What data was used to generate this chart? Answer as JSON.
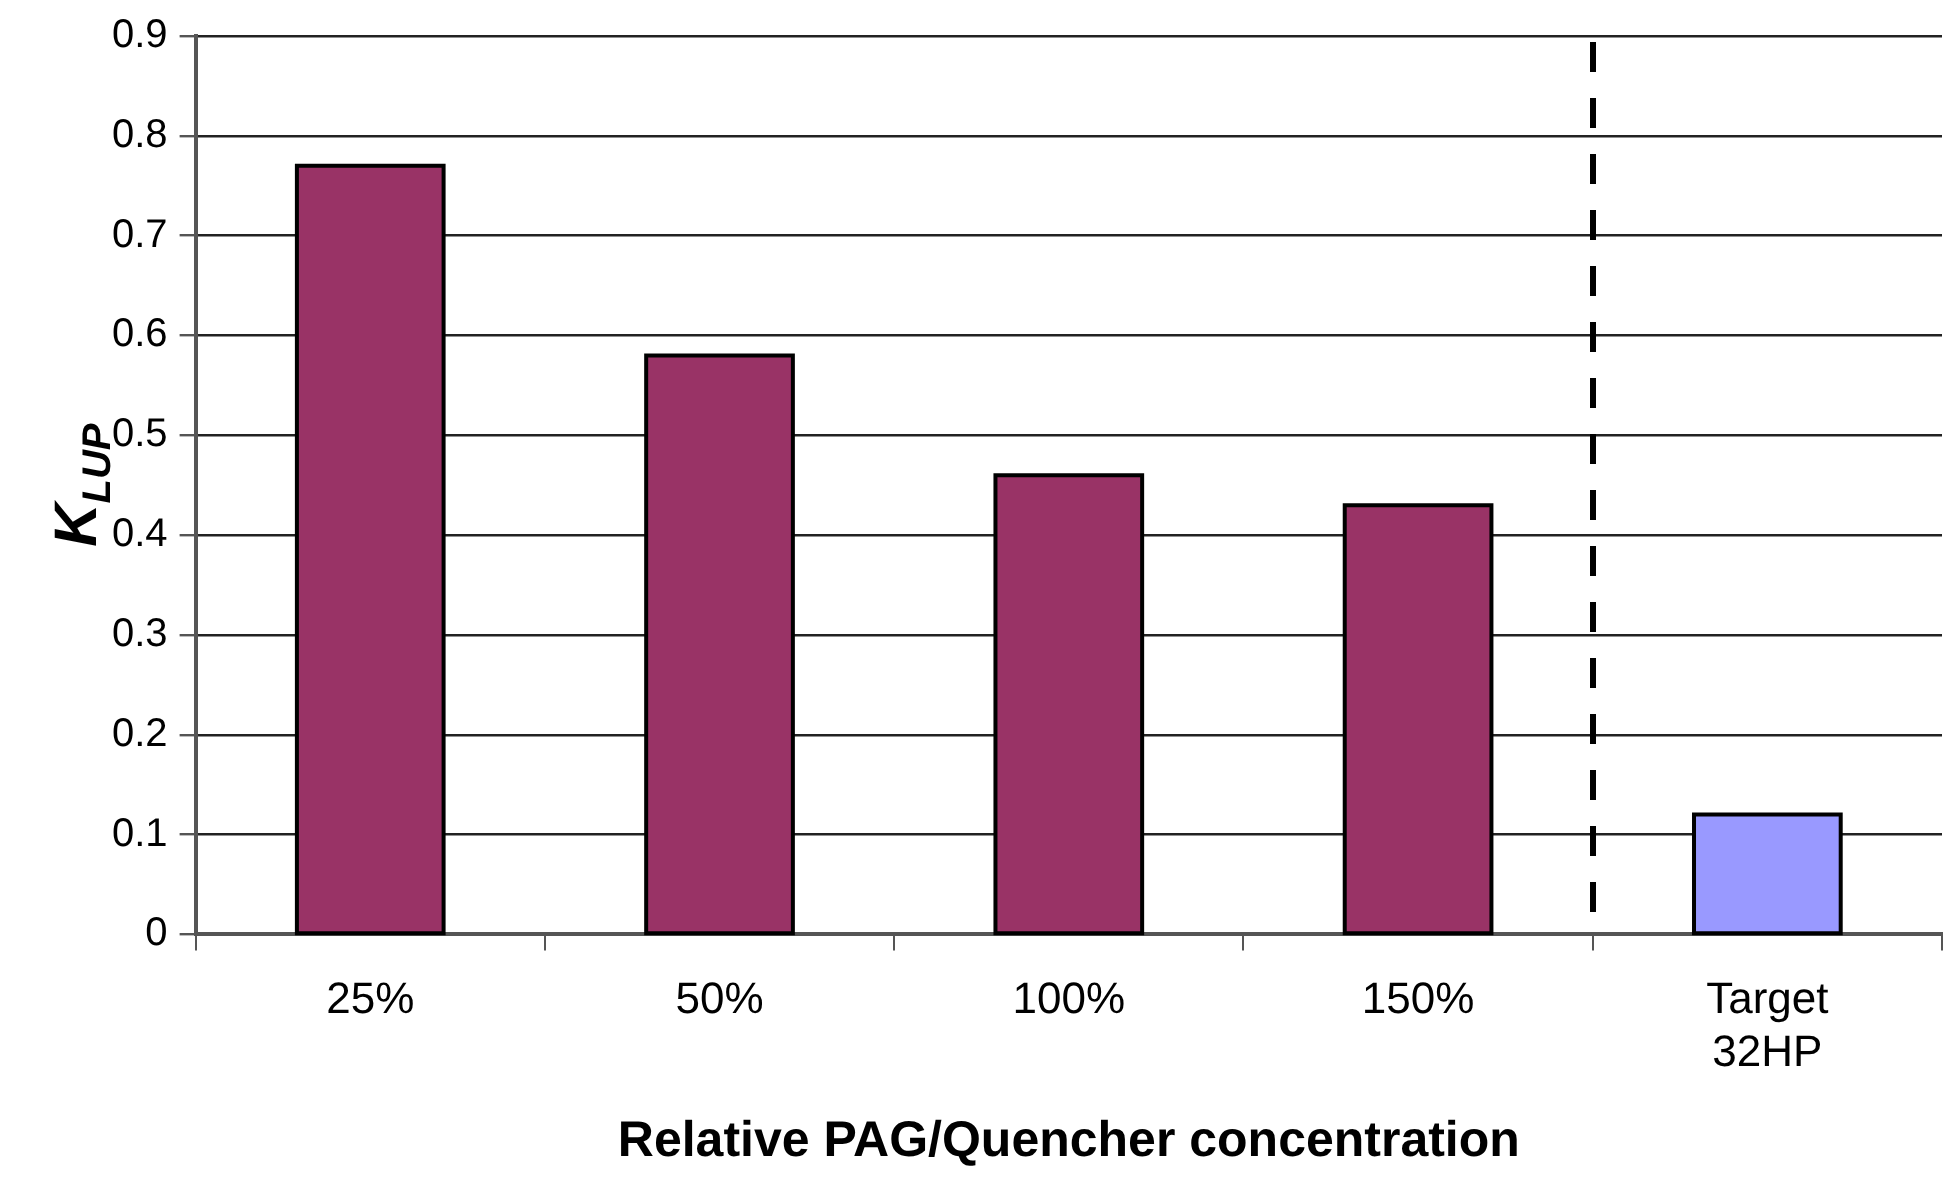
{
  "chart_data": {
    "type": "bar",
    "xlabel": "Relative PAG/Quencher concentration",
    "ylabel": "K$_{LUP}$",
    "categories": [
      "25%",
      "50%",
      "100%",
      "150%",
      "Target 32HP"
    ],
    "values": [
      0.77,
      0.58,
      0.46,
      0.43,
      0.12
    ],
    "colors": [
      "#993366",
      "#993366",
      "#993366",
      "#993366",
      "#9999ff"
    ],
    "ylim": [
      0,
      0.9
    ],
    "yticks": [
      0,
      0.1,
      0.2,
      0.3,
      0.4,
      0.5,
      0.6,
      0.7,
      0.8,
      0.9
    ],
    "grid": "y",
    "legend": false
  }
}
